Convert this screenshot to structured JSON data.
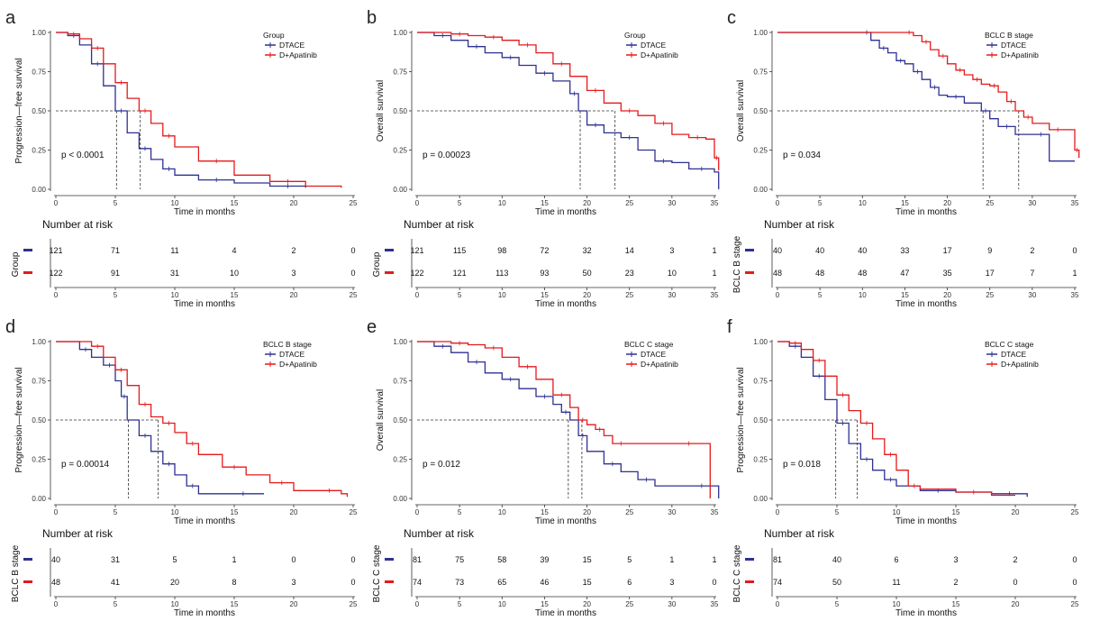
{
  "colors": {
    "dtace": "#2e3192",
    "dapatinib": "#e41a1c",
    "axis": "#333333",
    "median": "#333333"
  },
  "chart_data": [
    {
      "type": "line",
      "panel": "a",
      "ylabel": "Progression—free survival",
      "xlabel": "Time in months",
      "xlim": [
        0,
        25
      ],
      "ylim": [
        0,
        1
      ],
      "xticks": [
        0,
        5,
        10,
        15,
        20,
        25
      ],
      "yticks": [
        "0.00",
        "0.25",
        "0.50",
        "0.75",
        "1.00"
      ],
      "legend_title": "Group",
      "pvalue": "p < 0.0001",
      "medians": [
        5.1,
        7.1
      ],
      "series": [
        {
          "name": "DTACE",
          "x": [
            0,
            1,
            2,
            3,
            4,
            5,
            6,
            7,
            8,
            9,
            10,
            12,
            15,
            18,
            21
          ],
          "y": [
            1,
            0.98,
            0.92,
            0.8,
            0.66,
            0.5,
            0.36,
            0.26,
            0.19,
            0.13,
            0.09,
            0.06,
            0.04,
            0.02,
            0.01
          ]
        },
        {
          "name": "D+Apatinib",
          "x": [
            0,
            1,
            2,
            3,
            4,
            5,
            6,
            7,
            8,
            9,
            10,
            12,
            15,
            18,
            21,
            24
          ],
          "y": [
            1,
            0.99,
            0.96,
            0.9,
            0.8,
            0.68,
            0.58,
            0.5,
            0.42,
            0.34,
            0.27,
            0.18,
            0.09,
            0.05,
            0.02,
            0.01
          ]
        }
      ],
      "risk": {
        "title": "Number at risk",
        "ylabel": "Group",
        "xticks": [
          0,
          5,
          10,
          15,
          20,
          25
        ],
        "xlabel": "Time in months",
        "rows": [
          {
            "values": [
              "121",
              "71",
              "11",
              "4",
              "2",
              "0"
            ]
          },
          {
            "values": [
              "122",
              "91",
              "31",
              "10",
              "3",
              "0"
            ]
          }
        ]
      }
    },
    {
      "type": "line",
      "panel": "b",
      "ylabel": "Overall survival",
      "xlabel": "Time in months",
      "xlim": [
        0,
        35
      ],
      "ylim": [
        0,
        1
      ],
      "xticks": [
        0,
        5,
        10,
        15,
        20,
        25,
        30,
        35
      ],
      "yticks": [
        "0.00",
        "0.25",
        "0.50",
        "0.75",
        "1.00"
      ],
      "legend_title": "Group",
      "pvalue": "p = 0.00023",
      "medians": [
        19.2,
        23.3
      ],
      "series": [
        {
          "name": "DTACE",
          "x": [
            0,
            2,
            4,
            6,
            8,
            10,
            12,
            14,
            16,
            18,
            19,
            20,
            22,
            24,
            26,
            28,
            30,
            32,
            35,
            35.5
          ],
          "y": [
            1,
            0.98,
            0.95,
            0.91,
            0.87,
            0.84,
            0.79,
            0.74,
            0.69,
            0.61,
            0.5,
            0.41,
            0.36,
            0.33,
            0.25,
            0.18,
            0.17,
            0.13,
            0.11,
            0
          ]
        },
        {
          "name": "D+Apatinib",
          "x": [
            0,
            4,
            6,
            8,
            10,
            12,
            14,
            16,
            18,
            20,
            22,
            24,
            26,
            28,
            30,
            32,
            34,
            35,
            35.5
          ],
          "y": [
            1,
            0.99,
            0.98,
            0.97,
            0.95,
            0.92,
            0.87,
            0.8,
            0.72,
            0.63,
            0.55,
            0.5,
            0.47,
            0.42,
            0.35,
            0.33,
            0.32,
            0.2,
            0.12
          ]
        }
      ],
      "risk": {
        "title": "Number at risk",
        "ylabel": "Group",
        "xticks": [
          0,
          5,
          10,
          15,
          20,
          25,
          30,
          35
        ],
        "xlabel": "Time in months",
        "rows": [
          {
            "values": [
              "121",
              "115",
              "98",
              "72",
              "32",
              "14",
              "3",
              "1"
            ]
          },
          {
            "values": [
              "122",
              "121",
              "113",
              "93",
              "50",
              "23",
              "10",
              "1"
            ]
          }
        ]
      }
    },
    {
      "type": "line",
      "panel": "c",
      "ylabel": "Overall survival",
      "xlabel": "Time in months",
      "xlim": [
        0,
        35
      ],
      "ylim": [
        0,
        1
      ],
      "xticks": [
        0,
        5,
        10,
        15,
        20,
        25,
        30,
        35
      ],
      "yticks": [
        "0.00",
        "0.25",
        "0.50",
        "0.75",
        "1.00"
      ],
      "legend_title": "BCLC B stage",
      "pvalue": "p = 0.034",
      "medians": [
        24.2,
        28.4
      ],
      "series": [
        {
          "name": "DTACE",
          "x": [
            0,
            10,
            11,
            12,
            13,
            14,
            15,
            16,
            17,
            18,
            19,
            20,
            22,
            24,
            25,
            26,
            28,
            30,
            32,
            35
          ],
          "y": [
            1,
            1,
            0.95,
            0.9,
            0.87,
            0.82,
            0.8,
            0.75,
            0.7,
            0.65,
            0.6,
            0.59,
            0.55,
            0.5,
            0.45,
            0.4,
            0.35,
            0.35,
            0.18,
            0.18
          ]
        },
        {
          "name": "D+Apatinib",
          "x": [
            0,
            15,
            16,
            17,
            18,
            19,
            20,
            21,
            22,
            23,
            24,
            25,
            26,
            27,
            28,
            29,
            30,
            32,
            34,
            35,
            35.5
          ],
          "y": [
            1,
            1,
            0.98,
            0.94,
            0.89,
            0.85,
            0.8,
            0.76,
            0.73,
            0.7,
            0.67,
            0.66,
            0.62,
            0.56,
            0.5,
            0.46,
            0.42,
            0.38,
            0.38,
            0.25,
            0.2
          ]
        }
      ],
      "risk": {
        "title": "Number at risk",
        "ylabel": "BCLC B stage",
        "xticks": [
          0,
          5,
          10,
          15,
          20,
          25,
          30,
          35
        ],
        "xlabel": "Time in months",
        "rows": [
          {
            "values": [
              "40",
              "40",
              "40",
              "33",
              "17",
              "9",
              "2",
              "0"
            ]
          },
          {
            "values": [
              "48",
              "48",
              "48",
              "47",
              "35",
              "17",
              "7",
              "1"
            ]
          }
        ]
      }
    },
    {
      "type": "line",
      "panel": "d",
      "ylabel": "Progression—free survival",
      "xlabel": "Time in months",
      "xlim": [
        0,
        25
      ],
      "ylim": [
        0,
        1
      ],
      "xticks": [
        0,
        5,
        10,
        15,
        20,
        25
      ],
      "yticks": [
        "0.00",
        "0.25",
        "0.50",
        "0.75",
        "1.00"
      ],
      "legend_title": "BCLC B stage",
      "pvalue": "p = 0.00014",
      "medians": [
        6.1,
        8.6
      ],
      "series": [
        {
          "name": "DTACE",
          "x": [
            0,
            2,
            3,
            4,
            5,
            5.5,
            6,
            7,
            8,
            9,
            10,
            11,
            12,
            14,
            17.5
          ],
          "y": [
            1,
            0.95,
            0.9,
            0.85,
            0.75,
            0.65,
            0.5,
            0.4,
            0.3,
            0.22,
            0.15,
            0.08,
            0.03,
            0.03,
            0.03
          ]
        },
        {
          "name": "D+Apatinib",
          "x": [
            0,
            3,
            4,
            5,
            6,
            7,
            8,
            9,
            10,
            11,
            12,
            14,
            16,
            18,
            20,
            22,
            24,
            24.5
          ],
          "y": [
            1,
            0.97,
            0.9,
            0.82,
            0.72,
            0.6,
            0.52,
            0.48,
            0.42,
            0.35,
            0.28,
            0.2,
            0.15,
            0.1,
            0.05,
            0.05,
            0.03,
            0.01
          ]
        }
      ],
      "risk": {
        "title": "Number at risk",
        "ylabel": "BCLC B stage",
        "xticks": [
          0,
          5,
          10,
          15,
          20,
          25
        ],
        "xlabel": "Time in months",
        "rows": [
          {
            "values": [
              "40",
              "31",
              "5",
              "1",
              "0",
              "0"
            ]
          },
          {
            "values": [
              "48",
              "41",
              "20",
              "8",
              "3",
              "0"
            ]
          }
        ]
      }
    },
    {
      "type": "line",
      "panel": "e",
      "ylabel": "Overall survival",
      "xlabel": "Time in months",
      "xlim": [
        0,
        35
      ],
      "ylim": [
        0,
        1
      ],
      "xticks": [
        0,
        5,
        10,
        15,
        20,
        25,
        30,
        35
      ],
      "yticks": [
        "0.00",
        "0.25",
        "0.50",
        "0.75",
        "1.00"
      ],
      "legend_title": "BCLC C stage",
      "pvalue": "p = 0.012",
      "medians": [
        17.8,
        19.4
      ],
      "series": [
        {
          "name": "DTACE",
          "x": [
            0,
            2,
            4,
            6,
            8,
            10,
            12,
            14,
            16,
            17,
            18,
            19,
            20,
            22,
            24,
            26,
            28,
            32,
            35,
            35.5
          ],
          "y": [
            1,
            0.97,
            0.93,
            0.87,
            0.8,
            0.76,
            0.7,
            0.65,
            0.6,
            0.55,
            0.5,
            0.4,
            0.3,
            0.22,
            0.17,
            0.12,
            0.08,
            0.08,
            0.08,
            0
          ]
        },
        {
          "name": "D+Apatinib",
          "x": [
            0,
            4,
            6,
            8,
            10,
            12,
            14,
            16,
            18,
            19,
            20,
            21,
            22,
            23,
            25,
            30,
            34,
            34.5
          ],
          "y": [
            1,
            0.99,
            0.98,
            0.96,
            0.9,
            0.84,
            0.76,
            0.66,
            0.58,
            0.5,
            0.47,
            0.44,
            0.4,
            0.35,
            0.35,
            0.35,
            0.35,
            0
          ]
        }
      ],
      "risk": {
        "title": "Number at risk",
        "ylabel": "BCLC C stage",
        "xticks": [
          0,
          5,
          10,
          15,
          20,
          25,
          30,
          35
        ],
        "xlabel": "Time in months",
        "rows": [
          {
            "values": [
              "81",
              "75",
              "58",
              "39",
              "15",
              "5",
              "1",
              "1"
            ]
          },
          {
            "values": [
              "74",
              "73",
              "65",
              "46",
              "15",
              "6",
              "3",
              "0"
            ]
          }
        ]
      }
    },
    {
      "type": "line",
      "panel": "f",
      "ylabel": "Progression—free survival",
      "xlabel": "Time in months",
      "xlim": [
        0,
        25
      ],
      "ylim": [
        0,
        1
      ],
      "xticks": [
        0,
        5,
        10,
        15,
        20,
        25
      ],
      "yticks": [
        "0.00",
        "0.25",
        "0.50",
        "0.75",
        "1.00"
      ],
      "legend_title": "BCLC C stage",
      "pvalue": "p = 0.018",
      "medians": [
        4.9,
        6.7
      ],
      "series": [
        {
          "name": "DTACE",
          "x": [
            0,
            1,
            2,
            3,
            4,
            5,
            6,
            7,
            8,
            9,
            10,
            12,
            15,
            18,
            21
          ],
          "y": [
            1,
            0.97,
            0.9,
            0.78,
            0.63,
            0.48,
            0.35,
            0.25,
            0.18,
            0.12,
            0.08,
            0.05,
            0.04,
            0.03,
            0.01
          ]
        },
        {
          "name": "D+Apatinib",
          "x": [
            0,
            1,
            2,
            3,
            4,
            5,
            6,
            7,
            8,
            9,
            10,
            11,
            12,
            15,
            18,
            20
          ],
          "y": [
            1,
            0.99,
            0.95,
            0.88,
            0.78,
            0.66,
            0.56,
            0.48,
            0.38,
            0.28,
            0.18,
            0.08,
            0.06,
            0.04,
            0.02,
            0.02
          ]
        }
      ],
      "risk": {
        "title": "Number at risk",
        "ylabel": "BCLC C stage",
        "xticks": [
          0,
          5,
          10,
          15,
          20,
          25
        ],
        "xlabel": "Time in months",
        "rows": [
          {
            "values": [
              "81",
              "40",
              "6",
              "3",
              "2",
              "0"
            ]
          },
          {
            "values": [
              "74",
              "50",
              "11",
              "2",
              "0",
              "0"
            ]
          }
        ]
      }
    }
  ]
}
